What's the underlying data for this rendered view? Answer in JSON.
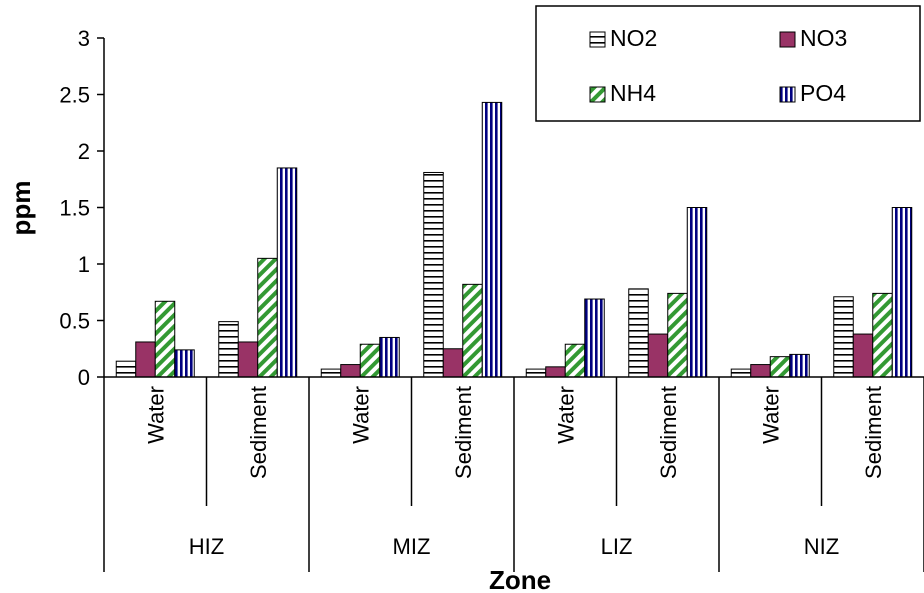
{
  "chart_data": {
    "type": "bar",
    "xlabel": "Zone",
    "ylabel": "ppm",
    "ylim": [
      0,
      3
    ],
    "yticks": [
      "0",
      "0.5",
      "1",
      "1.5",
      "2",
      "2.5",
      "3"
    ],
    "ytick_values": [
      0,
      0.5,
      1,
      1.5,
      2,
      2.5,
      3
    ],
    "groups": [
      "HIZ",
      "MIZ",
      "LIZ",
      "NIZ"
    ],
    "categories": [
      "Water",
      "Sediment",
      "Water",
      "Sediment",
      "Water",
      "Sediment",
      "Water",
      "Sediment"
    ],
    "legend_position": "top-right",
    "series": [
      {
        "name": "NO2",
        "pattern": "horizontal-stripes",
        "color": "#000000",
        "values": [
          0.14,
          0.49,
          0.07,
          1.81,
          0.07,
          0.78,
          0.07,
          0.71
        ]
      },
      {
        "name": "NO3",
        "pattern": "solid",
        "color": "#993366",
        "values": [
          0.31,
          0.31,
          0.11,
          0.25,
          0.09,
          0.38,
          0.11,
          0.38
        ]
      },
      {
        "name": "NH4",
        "pattern": "diagonal-stripes",
        "color": "#339933",
        "values": [
          0.67,
          1.05,
          0.29,
          0.82,
          0.29,
          0.74,
          0.18,
          0.74
        ]
      },
      {
        "name": "PO4",
        "pattern": "vertical-stripes",
        "color": "#000080",
        "values": [
          0.24,
          1.85,
          0.35,
          2.43,
          0.69,
          1.5,
          0.2,
          1.5
        ]
      }
    ]
  }
}
